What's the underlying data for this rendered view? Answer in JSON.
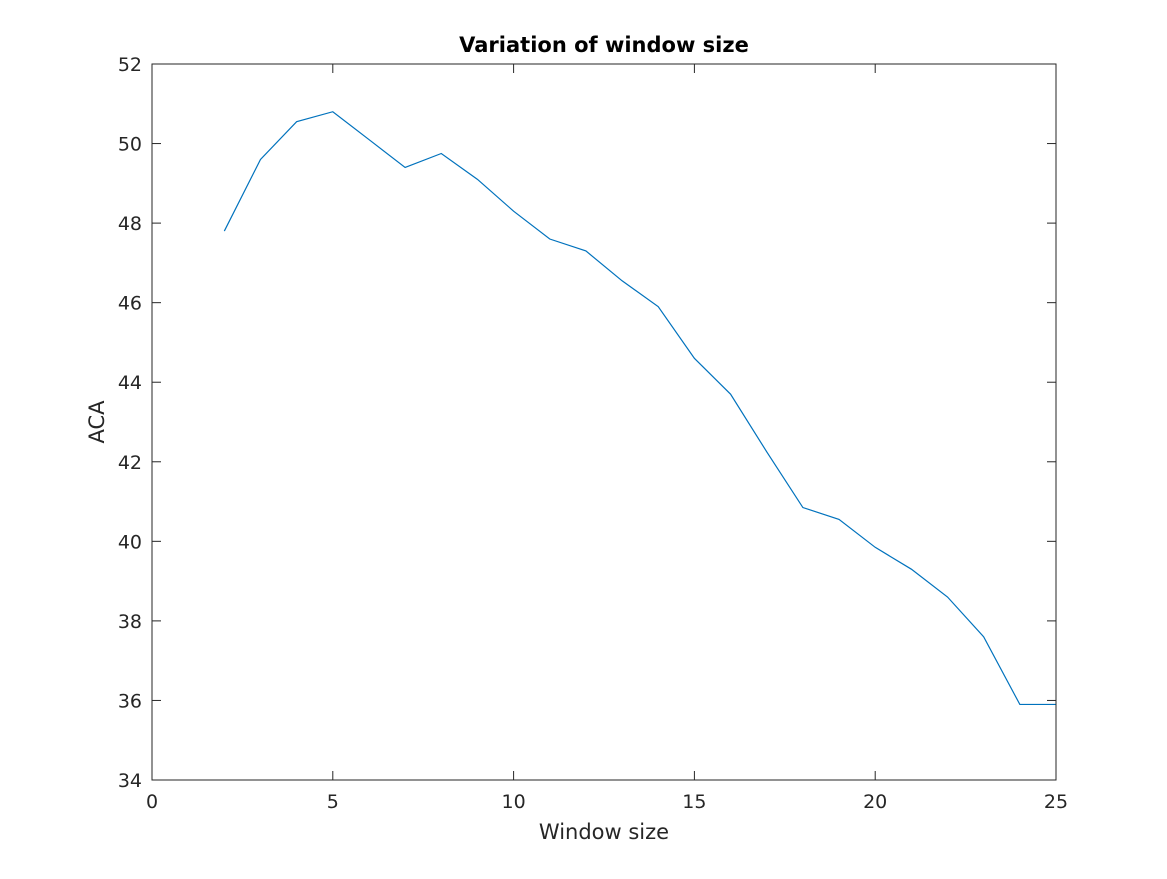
{
  "chart_data": {
    "type": "line",
    "title": "Variation of window size",
    "xlabel": "Window size",
    "ylabel": "ACA",
    "xlim": [
      0,
      25
    ],
    "ylim": [
      34,
      52
    ],
    "xticks": [
      "0",
      "5",
      "10",
      "15",
      "20",
      "25"
    ],
    "yticks": [
      "34",
      "36",
      "38",
      "40",
      "42",
      "44",
      "46",
      "48",
      "50",
      "52"
    ],
    "grid": false,
    "legend": "none",
    "line_color": "#0072BD",
    "series": [
      {
        "x": [
          2,
          3,
          4,
          5,
          6,
          7,
          8,
          9,
          10,
          11,
          12,
          13,
          14,
          15,
          16,
          17,
          18,
          19,
          20,
          21,
          22,
          23,
          24,
          25
        ],
        "values": [
          47.8,
          49.6,
          50.55,
          50.8,
          50.1,
          49.4,
          49.75,
          49.1,
          48.3,
          47.6,
          47.3,
          46.55,
          45.9,
          44.6,
          43.7,
          42.25,
          40.85,
          40.55,
          39.85,
          39.3,
          38.6,
          37.6,
          35.9,
          35.9
        ]
      }
    ]
  }
}
